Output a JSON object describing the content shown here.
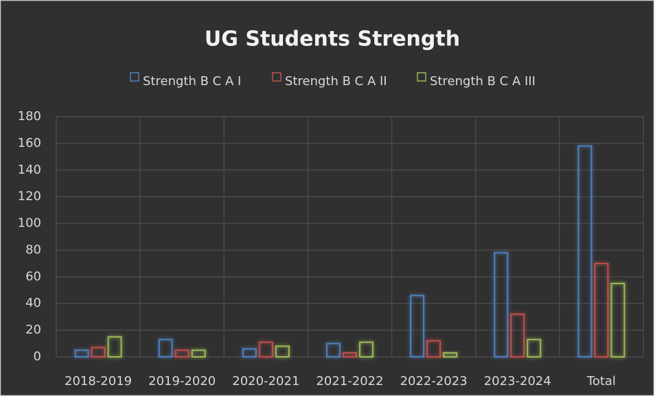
{
  "chart_data": {
    "type": "bar",
    "title": "UG Students Strength",
    "categories": [
      "2018-2019",
      "2019-2020",
      "2020-2021",
      "2021-2022",
      "2022-2023",
      "2023-2024",
      "Total"
    ],
    "series": [
      {
        "name": "Strength B C A I",
        "color": "#4f81bd",
        "values": [
          5,
          13,
          6,
          10,
          46,
          78,
          158
        ]
      },
      {
        "name": "Strength B C A II",
        "color": "#c0504d",
        "values": [
          7,
          5,
          11,
          3,
          12,
          32,
          70
        ]
      },
      {
        "name": "Strength B C A III",
        "color": "#9bbb59",
        "values": [
          15,
          5,
          8,
          11,
          3,
          13,
          55
        ]
      }
    ],
    "ylim": [
      0,
      180
    ],
    "yticks": [
      0,
      20,
      40,
      60,
      80,
      100,
      120,
      140,
      160,
      180
    ],
    "grid": true,
    "legend": "top"
  }
}
